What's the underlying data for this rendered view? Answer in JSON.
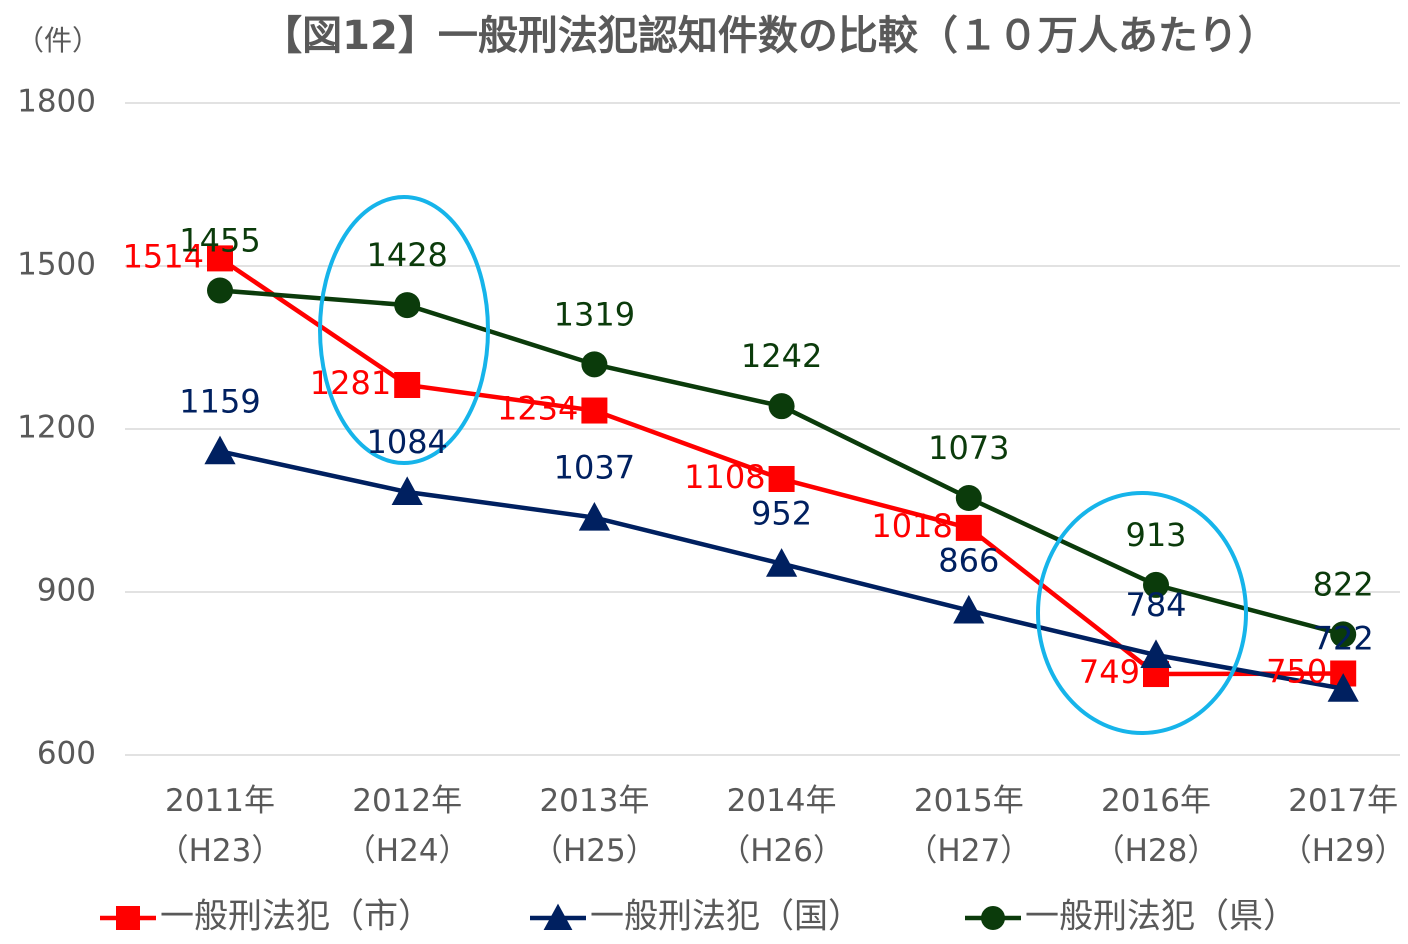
{
  "chart_data": {
    "type": "line",
    "title": "【図12】一般刑法犯認知件数の比較（１０万人あたり）",
    "ylabel": "（件）",
    "categories": [
      "2011年\n（H23）",
      "2012年\n（H24）",
      "2013年\n（H25）",
      "2014年\n（H26）",
      "2015年\n（H27）",
      "2016年\n（H28）",
      "2017年\n（H29）"
    ],
    "series": [
      {
        "name": "一般刑法犯（市）",
        "color": "#ff0000",
        "marker": "square",
        "values": [
          1514,
          1281,
          1234,
          1108,
          1018,
          749,
          750
        ]
      },
      {
        "name": "一般刑法犯（国）",
        "color": "#002060",
        "marker": "triangle",
        "values": [
          1159,
          1084,
          1037,
          952,
          866,
          784,
          722
        ]
      },
      {
        "name": "一般刑法犯（県）",
        "color": "#0b3b0b",
        "marker": "circle",
        "values": [
          1455,
          1428,
          1319,
          1242,
          1073,
          913,
          822
        ]
      }
    ],
    "ylim": [
      600,
      1800
    ],
    "yticks": [
      600,
      900,
      1200,
      1500,
      1800
    ],
    "grid": true,
    "legend": "bottom"
  }
}
